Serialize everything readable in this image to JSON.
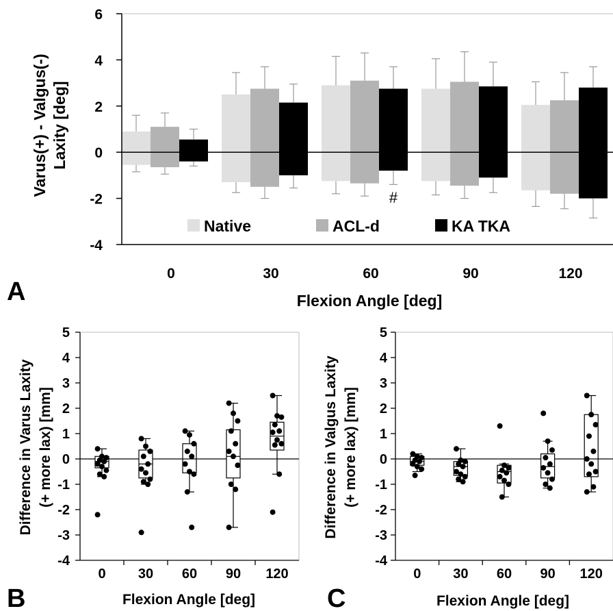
{
  "chart_data": [
    {
      "panel": "A",
      "type": "bar",
      "xlabel": "Flexion Angle [deg]",
      "ylabel_lines": [
        "Varus(+) - Valgus(-)",
        "Laxity [deg]"
      ],
      "categories": [
        "0",
        "30",
        "60",
        "90",
        "120"
      ],
      "ylim": [
        -4,
        6
      ],
      "yticks": [
        "-4",
        "-2",
        "0",
        "2",
        "4",
        "6"
      ],
      "legend_position": "bottom-center",
      "series": [
        {
          "name": "Native",
          "color": "#e0e0e0",
          "varus": [
            0.9,
            2.5,
            2.9,
            2.75,
            2.05
          ],
          "varus_sd": [
            0.7,
            0.95,
            1.25,
            1.3,
            1.0
          ],
          "valgus": [
            -0.55,
            -1.3,
            -1.25,
            -1.25,
            -1.65
          ],
          "valgus_sd": [
            0.3,
            0.45,
            0.55,
            0.6,
            0.7
          ]
        },
        {
          "name": "ACL-d",
          "color": "#b3b3b3",
          "varus": [
            1.1,
            2.75,
            3.1,
            3.05,
            2.25
          ],
          "varus_sd": [
            0.6,
            0.95,
            1.2,
            1.3,
            1.2
          ],
          "valgus": [
            -0.65,
            -1.5,
            -1.35,
            -1.45,
            -1.8
          ],
          "valgus_sd": [
            0.3,
            0.5,
            0.55,
            0.55,
            0.65
          ]
        },
        {
          "name": "KA TKA",
          "color": "#000000",
          "varus": [
            0.55,
            2.15,
            2.75,
            2.85,
            2.8
          ],
          "varus_sd": [
            0.45,
            0.8,
            0.95,
            1.05,
            0.9
          ],
          "valgus": [
            -0.4,
            -1.0,
            -0.8,
            -1.1,
            -2.0
          ],
          "valgus_sd": [
            0.2,
            0.55,
            0.6,
            0.65,
            0.85
          ]
        }
      ],
      "annotations": [
        {
          "text": "#",
          "category": "60"
        }
      ]
    },
    {
      "panel": "B",
      "type": "scatter",
      "subtype": "box-and-points",
      "xlabel": "Flexion Angle [deg]",
      "ylabel_lines": [
        "Difference in Varus Laxity",
        "(+ more lax) [mm]"
      ],
      "categories": [
        "0",
        "30",
        "60",
        "90",
        "120"
      ],
      "ylim": [
        -4,
        5
      ],
      "yticks": [
        "-4",
        "-3",
        "-2",
        "-1",
        "0",
        "1",
        "2",
        "3",
        "4",
        "5"
      ],
      "boxes": [
        {
          "min": -0.7,
          "q1": -0.35,
          "median": -0.1,
          "q3": 0.1,
          "max": 0.4
        },
        {
          "min": -1.0,
          "q1": -0.75,
          "median": -0.2,
          "q3": 0.35,
          "max": 0.8
        },
        {
          "min": -1.3,
          "q1": -0.55,
          "median": 0.0,
          "q3": 0.6,
          "max": 1.1
        },
        {
          "min": -2.7,
          "q1": -0.75,
          "median": 0.1,
          "q3": 1.15,
          "max": 2.2
        },
        {
          "min": -0.6,
          "q1": 0.35,
          "median": 0.9,
          "q3": 1.45,
          "max": 2.5
        }
      ],
      "points": [
        [
          0.4,
          0.1,
          0.05,
          -0.05,
          -0.1,
          -0.2,
          -0.3,
          -0.45,
          -0.6,
          -0.7,
          -2.2
        ],
        [
          0.8,
          0.5,
          0.3,
          0.1,
          -0.2,
          -0.4,
          -0.55,
          -0.8,
          -0.9,
          -1.0,
          -2.9
        ],
        [
          1.1,
          0.95,
          0.6,
          0.3,
          0.1,
          -0.2,
          -0.5,
          -0.6,
          -1.3,
          -2.7
        ],
        [
          2.2,
          1.8,
          1.5,
          1.1,
          0.6,
          0.3,
          0.1,
          -0.25,
          -1.0,
          -1.2,
          -2.7
        ],
        [
          2.5,
          1.7,
          1.65,
          1.35,
          1.1,
          1.05,
          0.75,
          0.6,
          0.55,
          -0.6,
          -2.1
        ]
      ]
    },
    {
      "panel": "C",
      "type": "scatter",
      "subtype": "box-and-points",
      "xlabel": "Flexion Angle [deg]",
      "ylabel_lines": [
        "Difference in Valgus Laxity",
        "(+ more lax) [mm]"
      ],
      "categories": [
        "0",
        "30",
        "60",
        "90",
        "120"
      ],
      "ylim": [
        -4,
        5
      ],
      "yticks": [
        "-4",
        "-3",
        "-2",
        "-1",
        "0",
        "1",
        "2",
        "3",
        "4",
        "5"
      ],
      "boxes": [
        {
          "min": -0.5,
          "q1": -0.25,
          "median": -0.1,
          "q3": 0.1,
          "max": 0.2
        },
        {
          "min": -0.9,
          "q1": -0.65,
          "median": -0.3,
          "q3": -0.1,
          "max": 0.4
        },
        {
          "min": -1.5,
          "q1": -0.95,
          "median": -0.5,
          "q3": -0.25,
          "max": -0.2
        },
        {
          "min": -1.15,
          "q1": -0.75,
          "median": -0.3,
          "q3": 0.2,
          "max": 0.7
        },
        {
          "min": -1.3,
          "q1": -0.7,
          "median": 0.0,
          "q3": 1.75,
          "max": 2.5
        }
      ],
      "points": [
        [
          0.2,
          0.1,
          0.05,
          -0.05,
          -0.1,
          -0.2,
          -0.3,
          -0.4,
          -0.65
        ],
        [
          0.4,
          -0.05,
          -0.1,
          -0.2,
          -0.3,
          -0.5,
          -0.6,
          -0.7,
          -0.8,
          -0.9
        ],
        [
          1.3,
          -0.25,
          -0.35,
          -0.45,
          -0.55,
          -0.7,
          -0.85,
          -1.0,
          -1.5
        ],
        [
          1.8,
          0.7,
          0.35,
          0.05,
          -0.2,
          -0.35,
          -0.55,
          -0.8,
          -1.0,
          -1.15
        ],
        [
          2.5,
          1.75,
          1.35,
          0.9,
          0.3,
          0.0,
          -0.2,
          -0.5,
          -0.6,
          -1.1,
          -1.3
        ]
      ]
    }
  ]
}
